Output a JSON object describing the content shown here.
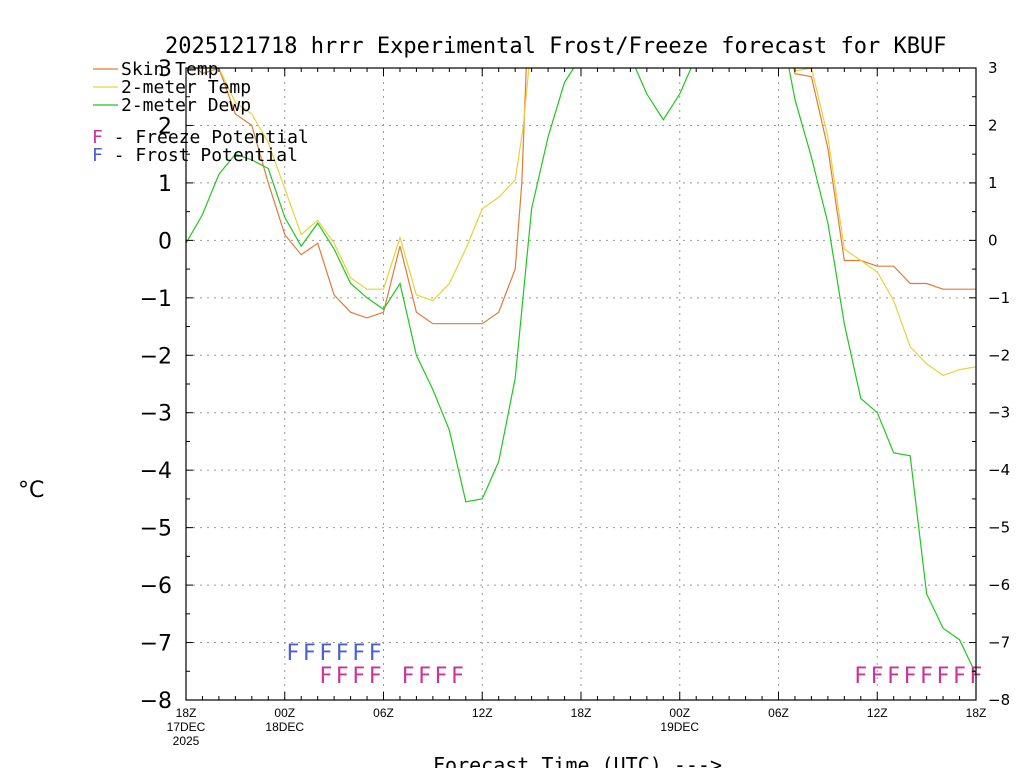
{
  "chart_data": {
    "type": "line",
    "title": "2025121718 hrrr Experimental Frost/Freeze forecast for KBUF",
    "xlabel": "Forecast Time (UTC) --->",
    "ylabel": "°C",
    "ylim": [
      -8,
      3
    ],
    "xlim": [
      0,
      48
    ],
    "y_ticks": [
      -8,
      -7,
      -6,
      -5,
      -4,
      -3,
      -2,
      -1,
      0,
      1,
      2,
      3
    ],
    "x_ticks": [
      {
        "h": 0,
        "label": "18Z",
        "sub1": "17DEC",
        "sub2": "2025"
      },
      {
        "h": 6,
        "label": "00Z",
        "sub1": "18DEC",
        "sub2": ""
      },
      {
        "h": 12,
        "label": "06Z",
        "sub1": "",
        "sub2": ""
      },
      {
        "h": 18,
        "label": "12Z",
        "sub1": "",
        "sub2": ""
      },
      {
        "h": 24,
        "label": "18Z",
        "sub1": "",
        "sub2": ""
      },
      {
        "h": 30,
        "label": "00Z",
        "sub1": "19DEC",
        "sub2": ""
      },
      {
        "h": 36,
        "label": "06Z",
        "sub1": "",
        "sub2": ""
      },
      {
        "h": 42,
        "label": "12Z",
        "sub1": "",
        "sub2": ""
      },
      {
        "h": 48,
        "label": "18Z",
        "sub1": "",
        "sub2": ""
      }
    ],
    "grid": true,
    "legend": [
      {
        "label": "Skin Temp",
        "color": "#e07b39"
      },
      {
        "label": "2-meter Temp",
        "color": "#e8d23a"
      },
      {
        "label": "2-meter Dewp",
        "color": "#1ec81e"
      }
    ],
    "potential_legend": [
      {
        "letter": "F",
        "label": " - Freeze Potential",
        "color": "#cc3399"
      },
      {
        "letter": "F",
        "label": " - Frost Potential",
        "color": "#4a5fd0"
      }
    ],
    "series": [
      {
        "name": "Skin Temp",
        "color": "#e07b39",
        "x": [
          0,
          1,
          2,
          3,
          4,
          5,
          6,
          7,
          8,
          9,
          10,
          11,
          12,
          13,
          14,
          15,
          16,
          17,
          18,
          19,
          20,
          20.4,
          20.7,
          36.8,
          37,
          38,
          39,
          40,
          41,
          42,
          43,
          44,
          45,
          46,
          47,
          48
        ],
        "y": [
          3.2,
          2.9,
          3.0,
          2.2,
          2.0,
          1.0,
          0.1,
          -0.25,
          -0.05,
          -0.95,
          -1.25,
          -1.35,
          -1.25,
          -0.1,
          -1.25,
          -1.45,
          -1.45,
          -1.45,
          -1.45,
          -1.25,
          -0.5,
          1.0,
          3.2,
          3.2,
          2.9,
          2.85,
          1.6,
          -0.35,
          -0.35,
          -0.45,
          -0.45,
          -0.75,
          -0.75,
          -0.85,
          -0.85,
          -0.85
        ]
      },
      {
        "name": "2-meter Temp",
        "color": "#e8d23a",
        "x": [
          0,
          1,
          2,
          3,
          4,
          5,
          6,
          7,
          8,
          9,
          10,
          11,
          12,
          13,
          14,
          15,
          16,
          17,
          18,
          19,
          20,
          20.5,
          20.9,
          36.8,
          37,
          38,
          39,
          40,
          41,
          42,
          43,
          44,
          45,
          46,
          47,
          48
        ],
        "y": [
          3.2,
          3.0,
          3.0,
          2.4,
          2.2,
          1.7,
          0.9,
          0.1,
          0.35,
          -0.05,
          -0.65,
          -0.85,
          -0.85,
          0.05,
          -0.95,
          -1.05,
          -0.75,
          -0.15,
          0.55,
          0.75,
          1.05,
          2.0,
          3.2,
          3.2,
          2.95,
          3.0,
          1.8,
          -0.15,
          -0.35,
          -0.55,
          -1.05,
          -1.85,
          -2.15,
          -2.35,
          -2.25,
          -2.2
        ]
      },
      {
        "name": "2-meter Dewp",
        "color": "#1ec81e",
        "x": [
          0,
          1,
          2,
          3,
          4,
          5,
          6,
          7,
          8,
          9,
          10,
          11,
          12,
          13,
          14,
          15,
          16,
          17,
          18,
          19,
          20,
          21,
          22,
          23,
          24,
          27,
          28,
          29,
          30,
          31,
          36.5,
          37,
          38,
          39,
          40,
          41,
          42,
          43,
          44,
          45,
          46,
          47,
          48
        ],
        "y": [
          -0.05,
          0.45,
          1.15,
          1.5,
          1.4,
          1.25,
          0.4,
          -0.1,
          0.3,
          -0.15,
          -0.75,
          -1.0,
          -1.2,
          -0.75,
          -2.0,
          -2.6,
          -3.3,
          -4.55,
          -4.5,
          -3.85,
          -2.4,
          0.55,
          1.8,
          2.75,
          3.2,
          3.2,
          2.55,
          2.1,
          2.55,
          3.2,
          3.2,
          2.45,
          1.45,
          0.3,
          -1.45,
          -2.75,
          -3.0,
          -3.7,
          -3.75,
          -6.15,
          -6.75,
          -6.95,
          -7.55
        ]
      }
    ],
    "markers": {
      "frost": {
        "letter": "F",
        "color": "#4a5fd0",
        "y": -7.15,
        "x": [
          6.5,
          7.5,
          8.5,
          9.5,
          10.5,
          11.5
        ]
      },
      "freeze": {
        "letter": "F",
        "color": "#cc3399",
        "y": -7.55,
        "x": [
          8.5,
          9.5,
          10.5,
          11.5,
          13.5,
          14.5,
          15.5,
          16.5,
          41,
          42,
          43,
          44,
          45,
          46,
          47,
          48
        ]
      }
    }
  }
}
